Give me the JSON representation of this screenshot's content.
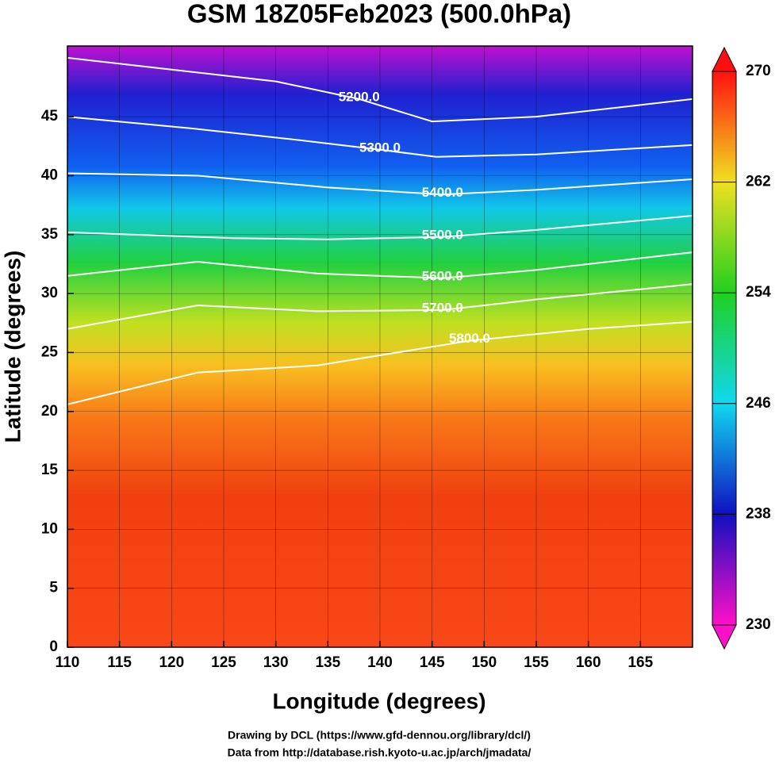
{
  "chart_data": {
    "type": "contour-map",
    "title": "GSM 18Z05Feb2023 (500.0hPa)",
    "x_label": "Longitude (degrees)",
    "y_label": "Latitude  (degrees)",
    "xlim": [
      110,
      170
    ],
    "ylim": [
      0,
      51
    ],
    "xticks": [
      110,
      115,
      120,
      125,
      130,
      135,
      140,
      145,
      150,
      155,
      160,
      165
    ],
    "yticks": [
      0,
      5,
      10,
      15,
      20,
      25,
      30,
      35,
      40,
      45
    ],
    "grid": true,
    "contours": [
      {
        "value": 5200,
        "label": "5200.0",
        "lon": [
          110,
          120,
          130,
          138,
          145,
          155,
          170
        ],
        "lat": [
          50,
          49,
          48,
          46.5,
          44.6,
          45,
          46.5
        ]
      },
      {
        "value": 5300,
        "label": "5300.0",
        "lon": [
          110,
          122,
          132.4,
          140,
          145.4,
          155,
          170
        ],
        "lat": [
          45,
          44,
          43,
          42.2,
          41.6,
          41.8,
          42.6
        ]
      },
      {
        "value": 5400,
        "label": "5400.0",
        "lon": [
          110,
          122.5,
          135,
          146,
          155,
          170
        ],
        "lat": [
          40.2,
          40,
          39,
          38.4,
          38.8,
          39.7
        ]
      },
      {
        "value": 5500,
        "label": "5500.0",
        "lon": [
          110,
          126,
          135,
          146,
          155,
          170
        ],
        "lat": [
          35.2,
          34.7,
          34.6,
          34.8,
          35.4,
          36.6
        ]
      },
      {
        "value": 5600,
        "label": "5600.0",
        "lon": [
          110,
          122.5,
          134,
          146,
          155,
          170
        ],
        "lat": [
          31.5,
          32.7,
          31.7,
          31.3,
          32,
          33.5
        ]
      },
      {
        "value": 5700,
        "label": "5700.0",
        "lon": [
          110,
          122.5,
          134,
          146,
          155,
          170
        ],
        "lat": [
          27,
          29,
          28.5,
          28.6,
          29.5,
          30.8
        ]
      },
      {
        "value": 5800,
        "label": "5800.0",
        "lon": [
          110,
          122.5,
          134,
          148.6,
          160,
          170
        ],
        "lat": [
          20.6,
          23.3,
          23.9,
          26,
          27,
          27.6
        ]
      }
    ],
    "colorbar": {
      "lim": [
        230,
        270
      ],
      "ticks": [
        230,
        238,
        246,
        254,
        262,
        270
      ],
      "colors": [
        "#ff10c8",
        "#1010c0",
        "#10d8f0",
        "#20d020",
        "#f0e020",
        "#ff1010"
      ]
    },
    "footer": [
      "Drawing by DCL (https://www.gfd-dennou.org/library/dcl/)",
      "Data from http://database.rish.kyoto-u.ac.jp/arch/jmadata/"
    ]
  }
}
